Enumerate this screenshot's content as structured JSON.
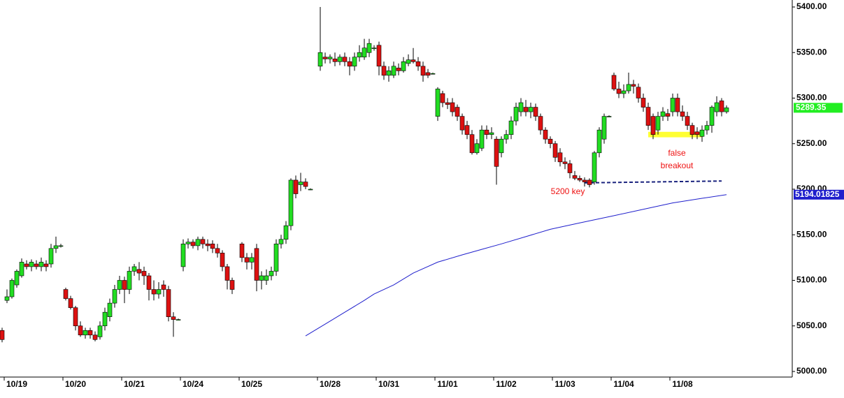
{
  "chart_data": {
    "type": "candlestick",
    "categories": [
      null,
      null,
      null,
      "10/19",
      null,
      null,
      null,
      null,
      null,
      null,
      null,
      null,
      null,
      null,
      null,
      "10/20",
      null,
      null,
      null,
      null,
      null,
      null,
      null,
      null,
      null,
      null,
      null,
      "10/21",
      null,
      null,
      null,
      null,
      null,
      null,
      null,
      null,
      null,
      null,
      null,
      "10/24",
      null,
      null,
      null,
      null,
      null,
      null,
      null,
      null,
      null,
      null,
      null,
      "10/25",
      null,
      null,
      null,
      null,
      null,
      null,
      null,
      null,
      null,
      null,
      null,
      null,
      null,
      null,
      null,
      "10/28",
      null,
      null,
      null,
      null,
      null,
      null,
      null,
      null,
      null,
      null,
      null,
      "10/31",
      null,
      null,
      null,
      null,
      null,
      null,
      null,
      null,
      null,
      null,
      null,
      "11/01",
      null,
      null,
      null,
      null,
      null,
      null,
      null,
      null,
      null,
      null,
      null,
      "11/02",
      null,
      null,
      null,
      null,
      null,
      null,
      null,
      null,
      null,
      null,
      null,
      "11/03",
      null,
      null,
      null,
      null,
      null,
      null,
      null,
      null,
      null,
      null,
      null,
      "11/04",
      null,
      null,
      null,
      null,
      null,
      null,
      null,
      null,
      null,
      null,
      null,
      "11/08",
      null,
      null,
      null,
      null,
      null,
      null,
      null,
      null,
      null
    ],
    "candles": [
      [
        5045,
        5048,
        5032,
        5035
      ],
      [
        5078,
        5090,
        5075,
        5082
      ],
      [
        5082,
        5102,
        5080,
        5100
      ],
      [
        5095,
        5112,
        5092,
        5110
      ],
      [
        5105,
        5124,
        5103,
        5120
      ],
      [
        5118,
        5122,
        5112,
        5115
      ],
      [
        5115,
        5123,
        5110,
        5120
      ],
      [
        5118,
        5122,
        5112,
        5115
      ],
      [
        5115,
        5125,
        5110,
        5120
      ],
      [
        5118,
        5122,
        5110,
        5115
      ],
      [
        5118,
        5140,
        5114,
        5135
      ],
      [
        5135,
        5148,
        5130,
        5138
      ],
      [
        5138,
        5140,
        5136,
        5138
      ],
      [
        5090,
        5092,
        5078,
        5080
      ],
      [
        5080,
        5083,
        5068,
        5070
      ],
      [
        5070,
        5072,
        5045,
        5050
      ],
      [
        5050,
        5055,
        5038,
        5040
      ],
      [
        5040,
        5048,
        5036,
        5045
      ],
      [
        5045,
        5048,
        5036,
        5040
      ],
      [
        5040,
        5044,
        5033,
        5035
      ],
      [
        5038,
        5055,
        5035,
        5050
      ],
      [
        5050,
        5070,
        5045,
        5065
      ],
      [
        5060,
        5080,
        5055,
        5075
      ],
      [
        5075,
        5095,
        5070,
        5090
      ],
      [
        5090,
        5105,
        5085,
        5100
      ],
      [
        5100,
        5104,
        5075,
        5090
      ],
      [
        5090,
        5115,
        5085,
        5110
      ],
      [
        5110,
        5118,
        5105,
        5115
      ],
      [
        5112,
        5120,
        5100,
        5108
      ],
      [
        5110,
        5115,
        5095,
        5105
      ],
      [
        5105,
        5108,
        5078,
        5090
      ],
      [
        5090,
        5100,
        5078,
        5085
      ],
      [
        5085,
        5098,
        5080,
        5090
      ],
      [
        5095,
        5100,
        5082,
        5090
      ],
      [
        5090,
        5094,
        5055,
        5060
      ],
      [
        5060,
        5065,
        5038,
        5057
      ],
      [
        5057,
        5058,
        5056,
        5057
      ],
      [
        5115,
        5145,
        5110,
        5140
      ],
      [
        5140,
        5146,
        5135,
        5142
      ],
      [
        5142,
        5145,
        5135,
        5138
      ],
      [
        5138,
        5148,
        5133,
        5145
      ],
      [
        5145,
        5148,
        5135,
        5140
      ],
      [
        5140,
        5145,
        5132,
        5138
      ],
      [
        5140,
        5144,
        5130,
        5135
      ],
      [
        5135,
        5140,
        5125,
        5130
      ],
      [
        5130,
        5133,
        5110,
        5115
      ],
      [
        5115,
        5118,
        5090,
        5100
      ],
      [
        5100,
        5103,
        5085,
        5090
      ],
      null,
      [
        5140,
        5142,
        5120,
        5125
      ],
      [
        5125,
        5130,
        5112,
        5120
      ],
      [
        5120,
        5130,
        5112,
        5125
      ],
      [
        5135,
        5140,
        5088,
        5100
      ],
      [
        5100,
        5110,
        5090,
        5105
      ],
      [
        5100,
        5112,
        5095,
        5105
      ],
      [
        5105,
        5115,
        5100,
        5110
      ],
      [
        5110,
        5145,
        5105,
        5140
      ],
      [
        5140,
        5150,
        5135,
        5145
      ],
      [
        5145,
        5165,
        5140,
        5160
      ],
      [
        5160,
        5212,
        5155,
        5210
      ],
      [
        5210,
        5215,
        5190,
        5195
      ],
      [
        5205,
        5218,
        5198,
        5208
      ],
      [
        5208,
        5212,
        5200,
        5203
      ],
      [
        5200,
        5201,
        5199,
        5200
      ],
      null,
      [
        5335,
        5400,
        5330,
        5350
      ],
      [
        5345,
        5350,
        5338,
        5343
      ],
      [
        5343,
        5348,
        5338,
        5345
      ],
      [
        5343,
        5350,
        5335,
        5340
      ],
      [
        5340,
        5348,
        5336,
        5345
      ],
      [
        5345,
        5350,
        5335,
        5340
      ],
      [
        5340,
        5345,
        5325,
        5335
      ],
      [
        5335,
        5350,
        5330,
        5345
      ],
      [
        5345,
        5358,
        5340,
        5350
      ],
      [
        5345,
        5365,
        5342,
        5355
      ],
      [
        5350,
        5365,
        5345,
        5360
      ],
      [
        5355,
        5358,
        5352,
        5355
      ],
      [
        5358,
        5362,
        5325,
        5335
      ],
      [
        5335,
        5340,
        5320,
        5325
      ],
      [
        5325,
        5335,
        5318,
        5330
      ],
      [
        5325,
        5340,
        5322,
        5335
      ],
      [
        5333,
        5338,
        5325,
        5330
      ],
      [
        5330,
        5345,
        5328,
        5340
      ],
      [
        5338,
        5348,
        5335,
        5342
      ],
      [
        5342,
        5355,
        5338,
        5340
      ],
      [
        5340,
        5345,
        5330,
        5335
      ],
      [
        5335,
        5340,
        5318,
        5325
      ],
      [
        5328,
        5332,
        5322,
        5325
      ],
      [
        5327,
        5328,
        5326,
        5327
      ],
      [
        5280,
        5312,
        5275,
        5310
      ],
      [
        5305,
        5308,
        5290,
        5295
      ],
      [
        5295,
        5300,
        5288,
        5293
      ],
      [
        5295,
        5300,
        5280,
        5285
      ],
      [
        5290,
        5293,
        5275,
        5280
      ],
      [
        5280,
        5283,
        5260,
        5265
      ],
      [
        5270,
        5275,
        5255,
        5260
      ],
      [
        5260,
        5265,
        5238,
        5240
      ],
      [
        5240,
        5255,
        5238,
        5250
      ],
      [
        5245,
        5270,
        5242,
        5265
      ],
      [
        5265,
        5270,
        5255,
        5260
      ],
      [
        5260,
        5268,
        5255,
        5262
      ],
      [
        5255,
        5258,
        5205,
        5225
      ],
      [
        5240,
        5258,
        5235,
        5255
      ],
      [
        5255,
        5265,
        5250,
        5260
      ],
      [
        5260,
        5280,
        5255,
        5275
      ],
      [
        5275,
        5295,
        5270,
        5290
      ],
      [
        5285,
        5300,
        5280,
        5295
      ],
      [
        5290,
        5298,
        5280,
        5285
      ],
      [
        5285,
        5295,
        5278,
        5290
      ],
      [
        5290,
        5294,
        5275,
        5280
      ],
      [
        5280,
        5283,
        5260,
        5265
      ],
      [
        5265,
        5268,
        5250,
        5255
      ],
      [
        5255,
        5258,
        5245,
        5250
      ],
      [
        5250,
        5253,
        5230,
        5235
      ],
      [
        5240,
        5245,
        5225,
        5230
      ],
      [
        5230,
        5235,
        5222,
        5228
      ],
      [
        5228,
        5232,
        5212,
        5218
      ],
      [
        5215,
        5220,
        5210,
        5212
      ],
      [
        5212,
        5215,
        5208,
        5210
      ],
      [
        5210,
        5213,
        5203,
        5208
      ],
      [
        5210,
        5212,
        5202,
        5205
      ],
      [
        5208,
        5242,
        5205,
        5240
      ],
      [
        5240,
        5268,
        5235,
        5265
      ],
      [
        5255,
        5283,
        5250,
        5280
      ],
      [
        5280,
        5281,
        5279,
        5280
      ],
      [
        5325,
        5328,
        5308,
        5310
      ],
      [
        5310,
        5318,
        5300,
        5305
      ],
      [
        5305,
        5315,
        5300,
        5308
      ],
      [
        5308,
        5328,
        5305,
        5315
      ],
      [
        5315,
        5320,
        5305,
        5313
      ],
      [
        5312,
        5316,
        5295,
        5300
      ],
      [
        5300,
        5305,
        5285,
        5290
      ],
      [
        5290,
        5295,
        5265,
        5270
      ],
      [
        5280,
        5283,
        5255,
        5260
      ],
      [
        5265,
        5285,
        5260,
        5280
      ],
      [
        5280,
        5290,
        5275,
        5285
      ],
      [
        5283,
        5288,
        5275,
        5280
      ],
      [
        5285,
        5305,
        5280,
        5300
      ],
      [
        5300,
        5305,
        5280,
        5285
      ],
      [
        5285,
        5292,
        5275,
        5280
      ],
      [
        5280,
        5285,
        5265,
        5270
      ],
      [
        5270,
        5273,
        5255,
        5260
      ],
      [
        5263,
        5268,
        5255,
        5260
      ],
      [
        5258,
        5270,
        5252,
        5265
      ],
      [
        5265,
        5275,
        5260,
        5270
      ],
      [
        5270,
        5292,
        5262,
        5290
      ],
      [
        5285,
        5302,
        5280,
        5295
      ],
      [
        5297,
        5300,
        5280,
        5285
      ],
      [
        5285,
        5292,
        5283,
        5289.35
      ]
    ],
    "up_color": "#22dd22",
    "down_color": "#dd1111",
    "moving_average": {
      "color": "#1f1fcc",
      "label_color": "#1f1fcc",
      "x": [
        62,
        66,
        70,
        74,
        76,
        80,
        84,
        89,
        94,
        98,
        102,
        107,
        112,
        118,
        125,
        131,
        137,
        143,
        148
      ],
      "values": [
        5039,
        5052,
        5065,
        5078,
        5085,
        5095,
        5108,
        5120,
        5128,
        5134,
        5140,
        5148,
        5156,
        5163,
        5171,
        5178,
        5185,
        5190,
        5194.01825
      ]
    },
    "support_line": {
      "color": "#1a237e",
      "x": [
        119,
        147
      ],
      "values": [
        5207,
        5209
      ]
    },
    "highlight": {
      "color": "#ffff33",
      "x": [
        132,
        143
      ],
      "values": [
        5257,
        5263
      ]
    },
    "last_price_color": "#22ee22",
    "annotations": [
      {
        "text": "5200 key",
        "color": "#ee1111"
      },
      {
        "lines": [
          "false",
          "breakout"
        ],
        "color": "#ee1111"
      }
    ],
    "ylim": [
      5000,
      5400
    ],
    "yticks": [
      {
        "value": 5000,
        "label": "5000.00"
      },
      {
        "value": 5050,
        "label": "5050.00"
      },
      {
        "value": 5100,
        "label": "5100.00"
      },
      {
        "value": 5150,
        "label": "5150.00"
      },
      {
        "value": 5200,
        "label": "5200.00"
      },
      {
        "value": 5250,
        "label": "5250.00"
      },
      {
        "value": 5300,
        "label": "5300.00"
      },
      {
        "value": 5350,
        "label": "5350.00"
      },
      {
        "value": 5400,
        "label": "5400.00"
      }
    ],
    "grid": false
  }
}
